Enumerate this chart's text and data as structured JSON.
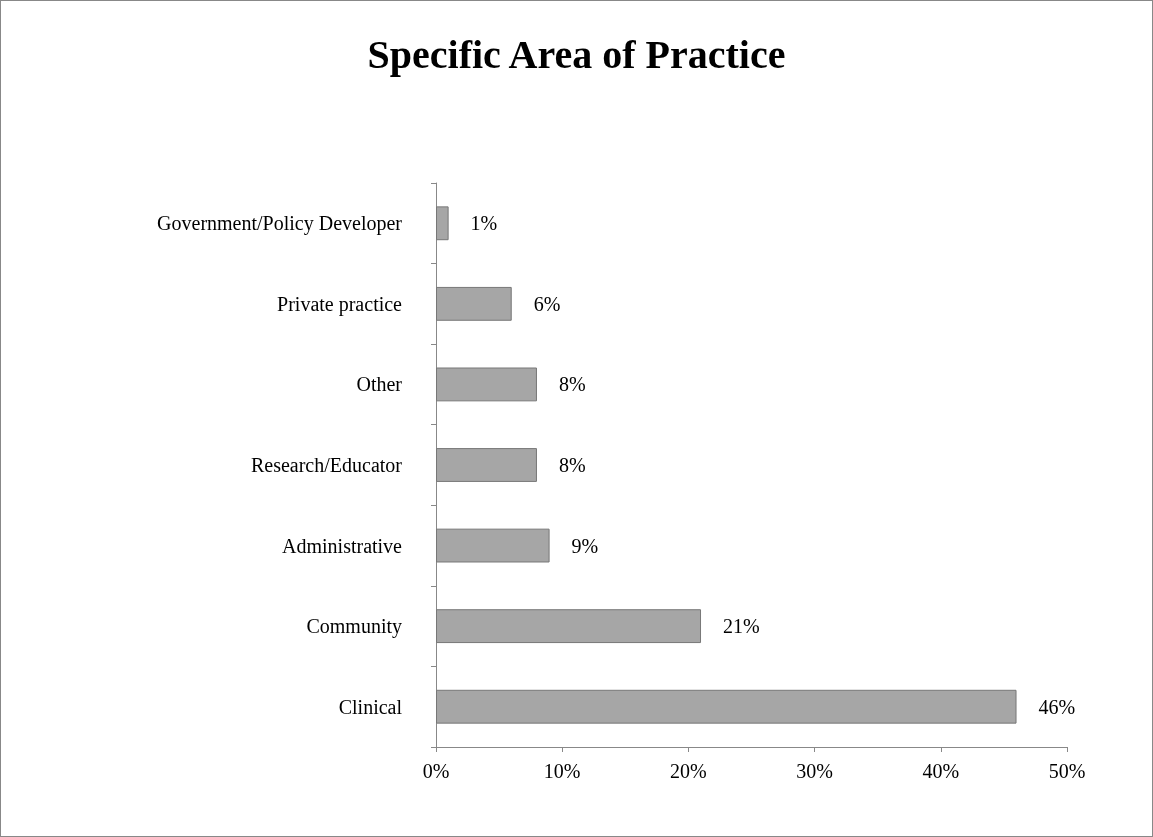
{
  "chart_data": {
    "type": "bar",
    "title": "Specific Area of Practice",
    "orientation": "horizontal",
    "categories": [
      "Government/Policy Developer",
      "Private practice",
      "Other",
      "Research/Educator",
      "Administrative",
      "Community",
      "Clinical"
    ],
    "values": [
      1,
      6,
      8,
      8,
      9,
      21,
      46
    ],
    "value_labels": [
      "1%",
      "6%",
      "8%",
      "8%",
      "9%",
      "21%",
      "46%"
    ],
    "color": "#a6a6a6",
    "xlim": [
      0,
      50
    ],
    "xticks": [
      {
        "value": 0,
        "label": "0%"
      },
      {
        "value": 10,
        "label": "10%"
      },
      {
        "value": 20,
        "label": "20%"
      },
      {
        "value": 30,
        "label": "30%"
      },
      {
        "value": 40,
        "label": "40%"
      },
      {
        "value": 50,
        "label": "50%"
      }
    ],
    "grid": false
  }
}
